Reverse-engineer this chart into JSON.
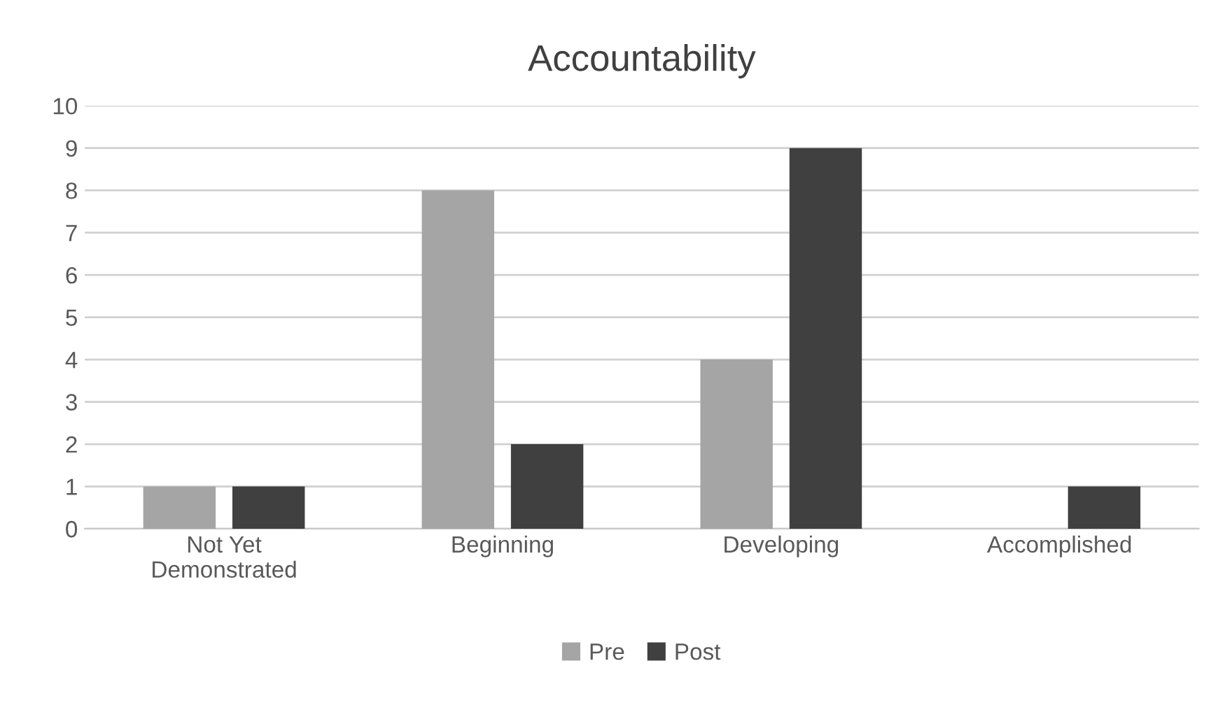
{
  "chart_data": {
    "type": "bar",
    "title": "Accountability",
    "categories": [
      "Not Yet\nDemonstrated",
      "Beginning",
      "Developing",
      "Accomplished"
    ],
    "series": [
      {
        "name": "Pre",
        "color": "#a5a5a5",
        "values": [
          1,
          8,
          4,
          0
        ]
      },
      {
        "name": "Post",
        "color": "#404040",
        "values": [
          1,
          2,
          9,
          1
        ]
      }
    ],
    "ylim": [
      0,
      10
    ],
    "yticks": [
      0,
      1,
      2,
      3,
      4,
      5,
      6,
      7,
      8,
      9,
      10
    ],
    "grid": "y",
    "legend": "bottom"
  }
}
